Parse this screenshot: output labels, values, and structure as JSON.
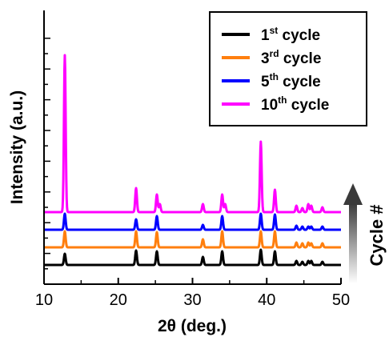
{
  "chart_data": {
    "type": "line",
    "title": "",
    "xlabel": "2θ (deg.)",
    "ylabel": "Intensity (a.u.)",
    "xlim": [
      10,
      50
    ],
    "xticks": [
      "10",
      "20",
      "30",
      "40",
      "50"
    ],
    "y_tick_labels_shown": false,
    "grid": false,
    "legend_position": "top-right",
    "stacked_offset_plot": true,
    "side_annotation": "Cycle #",
    "peaks_2theta": [
      12.8,
      22.4,
      25.2,
      25.6,
      31.4,
      34.0,
      34.4,
      39.2,
      41.1,
      44.0,
      44.8,
      45.6,
      46.0,
      47.5
    ],
    "series": [
      {
        "name": "1st cycle",
        "name_base": "1",
        "name_sup": "st",
        "name_rest": " cycle",
        "color": "#000000",
        "baseline": 0,
        "peak_heights": [
          14,
          18,
          17,
          0,
          10,
          17,
          0,
          19,
          17,
          5,
          4,
          5,
          5,
          4
        ]
      },
      {
        "name": "3rd cycle",
        "name_base": "3",
        "name_sup": "rd",
        "name_rest": " cycle",
        "color": "#ff7f0e",
        "baseline": 22,
        "peak_heights": [
          20,
          20,
          19,
          0,
          10,
          20,
          0,
          20,
          20,
          6,
          5,
          6,
          5,
          5
        ]
      },
      {
        "name": "5th cycle",
        "name_base": "5",
        "name_sup": "th",
        "name_rest": " cycle",
        "color": "#0000ff",
        "baseline": 44,
        "peak_heights": [
          20,
          13,
          17,
          0,
          6,
          17,
          0,
          20,
          19,
          5,
          4,
          4,
          4,
          4
        ]
      },
      {
        "name": "10th cycle",
        "name_base": "10",
        "name_sup": "th",
        "name_rest": " cycle",
        "color": "#ff00ff",
        "baseline": 66,
        "peak_heights": [
          196,
          30,
          22,
          10,
          10,
          22,
          10,
          88,
          28,
          8,
          5,
          10,
          8,
          6
        ]
      }
    ]
  }
}
